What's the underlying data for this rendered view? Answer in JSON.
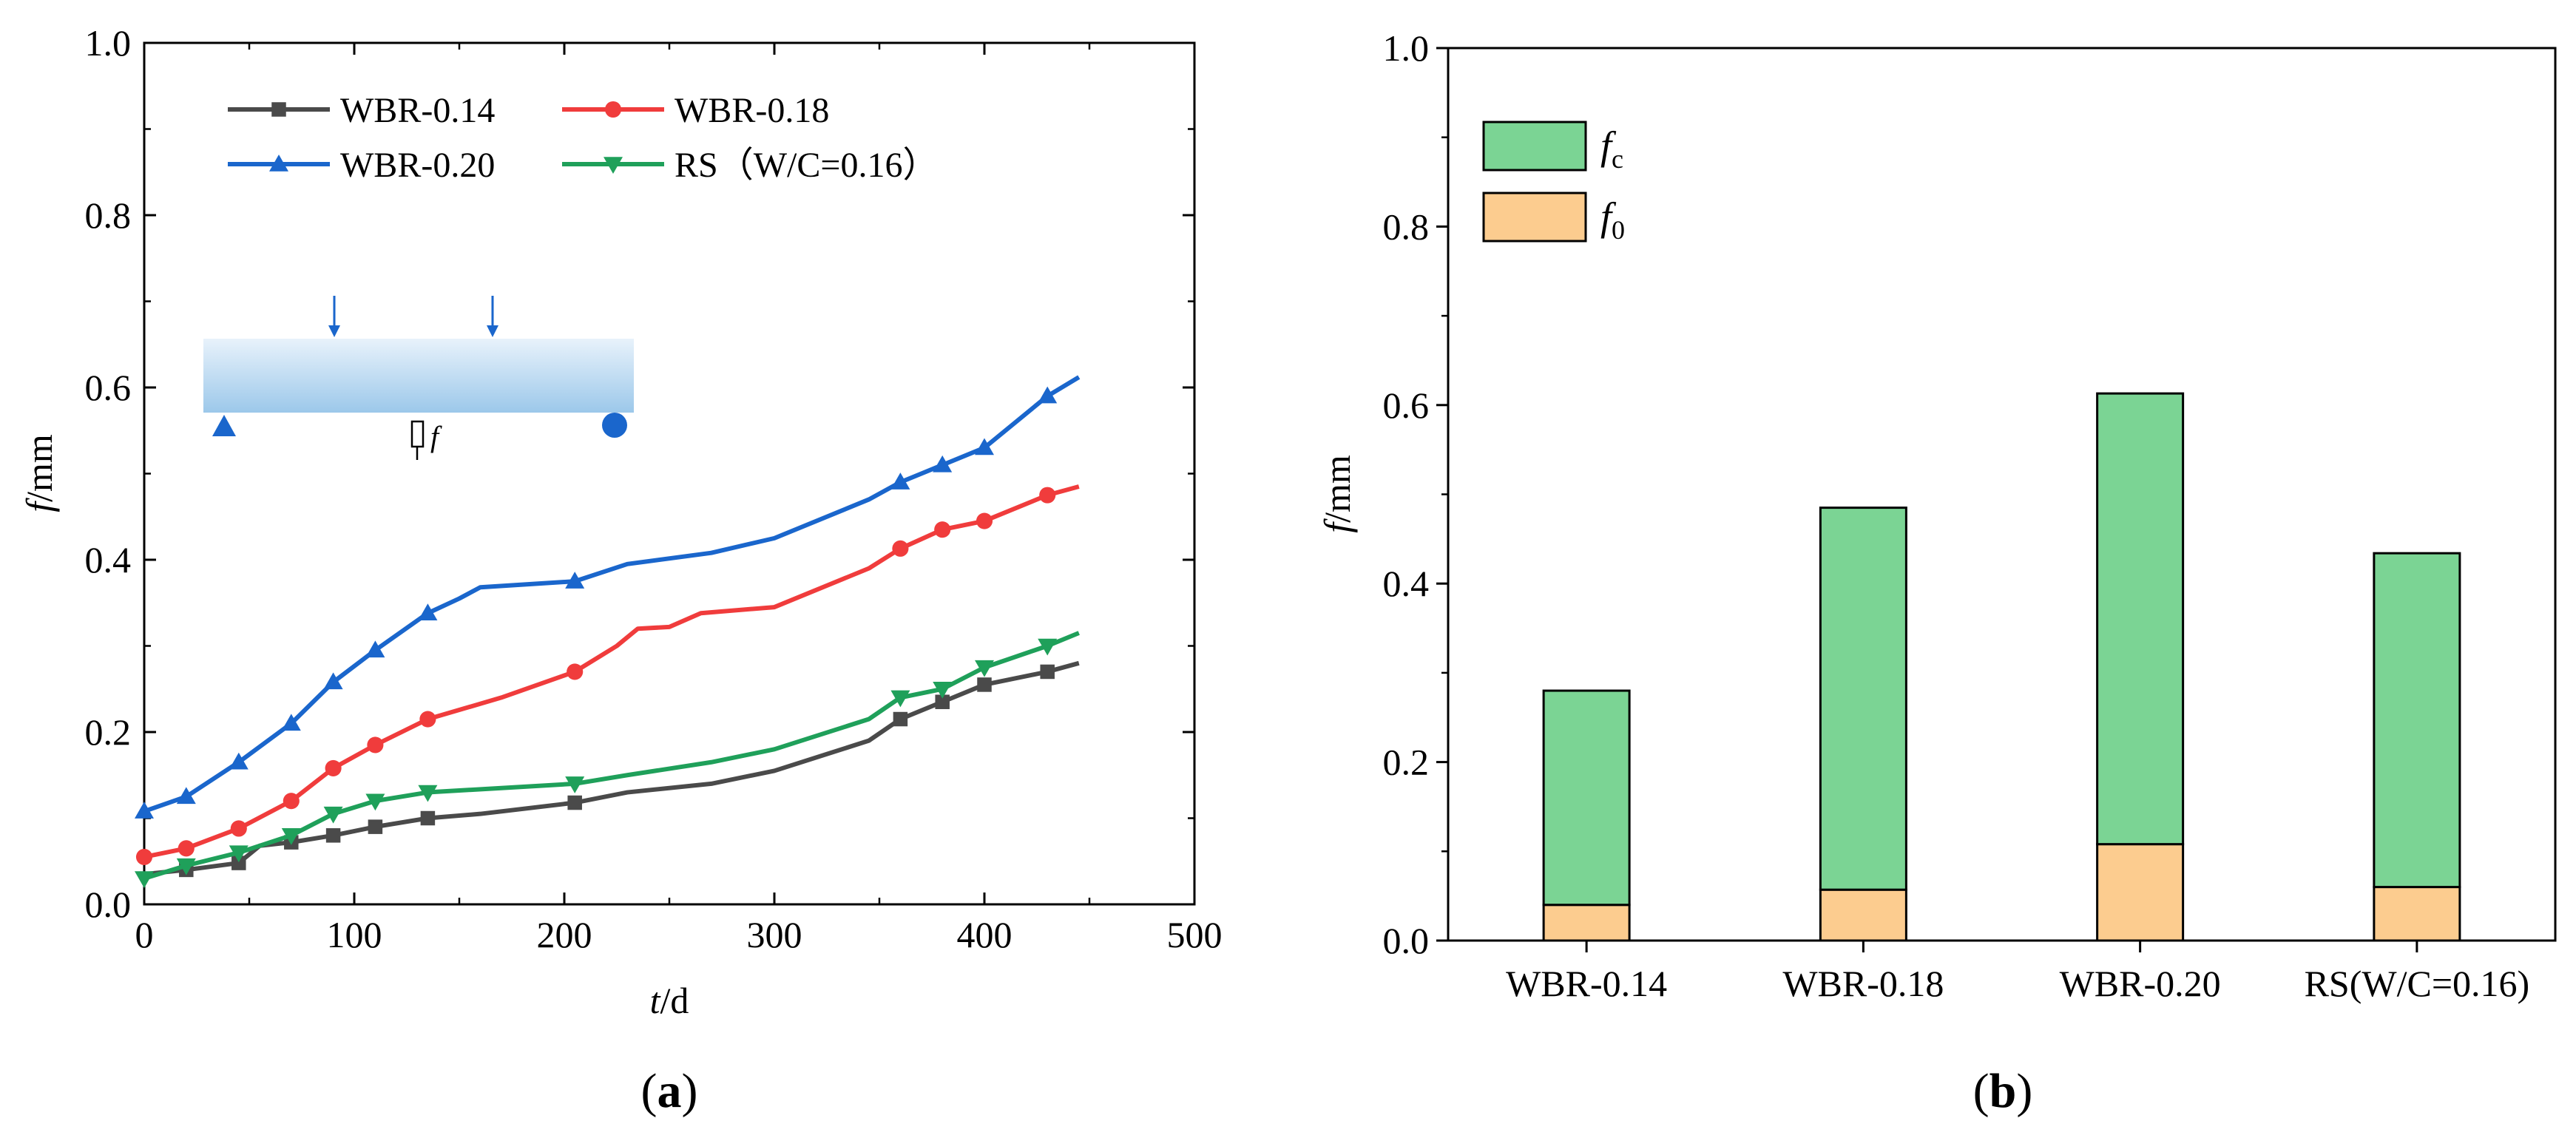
{
  "chart_data": [
    {
      "type": "line",
      "panel_label_open": "(",
      "panel_label": "a",
      "panel_label_close": ")",
      "xlabel_var": "t",
      "xlabel_unit": "/d",
      "ylabel_var": "f",
      "ylabel_unit": "/mm",
      "xlim": [
        0,
        500
      ],
      "ylim": [
        0,
        1.0
      ],
      "xticks": [
        "0",
        "100",
        "200",
        "300",
        "400",
        "500"
      ],
      "yticks": [
        "0.0",
        "0.2",
        "0.4",
        "0.6",
        "0.8",
        "1.0"
      ],
      "legend_position": "top-left",
      "inset_label": "f",
      "series": [
        {
          "name": "WBR-0.14",
          "color": "#4a4a4a",
          "marker": "square",
          "x": [
            0,
            20,
            45,
            55,
            70,
            90,
            110,
            135,
            160,
            205,
            230,
            270,
            300,
            345,
            360,
            380,
            400,
            430,
            445
          ],
          "y": [
            0.035,
            0.04,
            0.048,
            0.068,
            0.072,
            0.08,
            0.09,
            0.1,
            0.105,
            0.118,
            0.13,
            0.14,
            0.155,
            0.19,
            0.215,
            0.235,
            0.255,
            0.27,
            0.28
          ],
          "markers_x": [
            20,
            45,
            70,
            90,
            110,
            135,
            205,
            360,
            380,
            400,
            430
          ]
        },
        {
          "name": "WBR-0.18",
          "color": "#f03c3c",
          "marker": "circle",
          "x": [
            0,
            20,
            45,
            70,
            90,
            110,
            135,
            170,
            205,
            225,
            235,
            250,
            265,
            300,
            345,
            360,
            380,
            400,
            430,
            445
          ],
          "y": [
            0.055,
            0.065,
            0.088,
            0.12,
            0.158,
            0.185,
            0.215,
            0.24,
            0.27,
            0.3,
            0.32,
            0.322,
            0.338,
            0.345,
            0.39,
            0.413,
            0.435,
            0.445,
            0.475,
            0.485
          ],
          "markers_x": [
            0,
            20,
            45,
            70,
            90,
            110,
            135,
            205,
            360,
            380,
            400,
            430
          ]
        },
        {
          "name": "WBR-0.20",
          "color": "#1a66cc",
          "marker": "triangle-up",
          "x": [
            0,
            20,
            45,
            70,
            90,
            110,
            135,
            150,
            160,
            205,
            230,
            270,
            300,
            345,
            360,
            380,
            400,
            430,
            445
          ],
          "y": [
            0.108,
            0.125,
            0.165,
            0.21,
            0.258,
            0.295,
            0.338,
            0.355,
            0.368,
            0.375,
            0.395,
            0.408,
            0.425,
            0.47,
            0.49,
            0.51,
            0.53,
            0.59,
            0.612
          ],
          "markers_x": [
            0,
            20,
            45,
            70,
            90,
            110,
            135,
            205,
            360,
            380,
            400,
            430
          ]
        },
        {
          "name": "RS（W/C=0.16）",
          "color": "#1fa05a",
          "marker": "triangle-down",
          "x": [
            0,
            20,
            45,
            70,
            90,
            110,
            135,
            170,
            205,
            230,
            270,
            300,
            345,
            360,
            380,
            400,
            430,
            445
          ],
          "y": [
            0.03,
            0.045,
            0.06,
            0.08,
            0.105,
            0.12,
            0.13,
            0.135,
            0.14,
            0.15,
            0.165,
            0.18,
            0.215,
            0.24,
            0.25,
            0.275,
            0.3,
            0.315
          ],
          "markers_x": [
            0,
            20,
            45,
            70,
            90,
            110,
            135,
            205,
            360,
            380,
            400,
            430
          ]
        }
      ]
    },
    {
      "type": "bar",
      "stacked": true,
      "panel_label_open": "(",
      "panel_label": "b",
      "panel_label_close": ")",
      "ylabel_var": "f",
      "ylabel_unit": "/mm",
      "ylim": [
        0,
        1.0
      ],
      "yticks": [
        "0.0",
        "0.2",
        "0.4",
        "0.6",
        "0.8",
        "1.0"
      ],
      "categories": [
        "WBR-0.14",
        "WBR-0.18",
        "WBR-0.20",
        "RS(W/C=0.16)"
      ],
      "legend_position": "top-left",
      "series": [
        {
          "name": "f",
          "subscript": "0",
          "color": "#fccc8f",
          "values": [
            0.04,
            0.057,
            0.108,
            0.06
          ]
        },
        {
          "name": "f",
          "subscript": "c",
          "color": "#7bd494",
          "values": [
            0.24,
            0.428,
            0.505,
            0.374
          ]
        }
      ]
    }
  ]
}
